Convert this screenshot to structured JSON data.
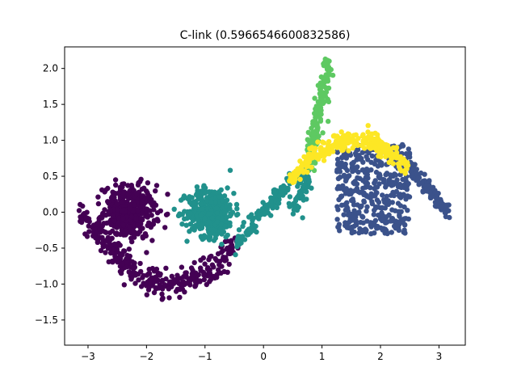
{
  "chart_data": {
    "type": "scatter",
    "title": "C-link (0.5966546600832586)",
    "xlabel": "",
    "ylabel": "",
    "xlim": [
      -3.4,
      3.45
    ],
    "ylim": [
      -1.85,
      2.3
    ],
    "x_ticks": [
      -3,
      -2,
      -1,
      0,
      1,
      2,
      3
    ],
    "y_ticks": [
      -1.5,
      -1.0,
      -0.5,
      0.0,
      0.5,
      1.0,
      1.5,
      2.0
    ],
    "x_tick_labels": [
      "−3",
      "−2",
      "−1",
      "0",
      "1",
      "2",
      "3"
    ],
    "y_tick_labels": [
      "−1.5",
      "−1.0",
      "−0.5",
      "0.0",
      "0.5",
      "1.0",
      "1.5",
      "2.0"
    ],
    "grid": false,
    "legend": "none",
    "series": [
      {
        "color": "#440154",
        "shapes": [
          {
            "kind": "curve",
            "fn": "sin",
            "x_range": [
              -3.14,
              -0.5
            ],
            "count": 320,
            "thickness": 0.09
          },
          {
            "kind": "blob",
            "center": [
              -2.3,
              0.0
            ],
            "spread": 0.22,
            "count": 420
          }
        ]
      },
      {
        "color": "#21918c",
        "shapes": [
          {
            "kind": "blob",
            "center": [
              -0.9,
              0.0
            ],
            "spread": 0.2,
            "count": 420
          },
          {
            "kind": "curve",
            "fn": "sin",
            "x_range": [
              -0.5,
              0.45
            ],
            "count": 130,
            "thickness": 0.06
          },
          {
            "kind": "segment",
            "from": [
              0.5,
              0.0
            ],
            "to": [
              0.78,
              0.6
            ],
            "count": 70,
            "thickness": 0.06
          }
        ]
      },
      {
        "color": "#5ec962",
        "shapes": [
          {
            "kind": "segment",
            "from": [
              0.78,
              0.6
            ],
            "to": [
              1.1,
              2.12
            ],
            "count": 170,
            "thickness": 0.05
          }
        ]
      },
      {
        "color": "#3b528b",
        "shapes": [
          {
            "kind": "rect",
            "x_range": [
              1.25,
              2.5
            ],
            "y_range": [
              -0.3,
              0.95
            ],
            "count": 420
          },
          {
            "kind": "curve",
            "fn": "sin",
            "x_range": [
              2.45,
              3.14
            ],
            "count": 130,
            "thickness": 0.05
          }
        ]
      },
      {
        "color": "#fde725",
        "shapes": [
          {
            "kind": "curve",
            "fn": "sin",
            "x_range": [
              0.45,
              2.45
            ],
            "count": 300,
            "thickness": 0.06
          }
        ]
      }
    ]
  }
}
